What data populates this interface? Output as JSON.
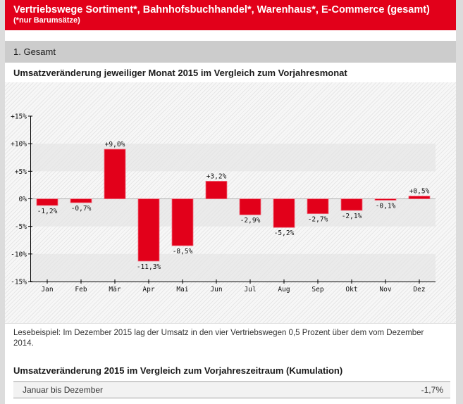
{
  "banner": {
    "title": "Vertriebswege Sortiment*, Bahnhofsbuchhandel*, Warenhaus*, E-Commerce (gesamt)",
    "subtitle": "(*nur Barumsätze)"
  },
  "section": {
    "label": "1. Gesamt"
  },
  "chart_title": "Umsatzveränderung jeweiliger Monat 2015 im Vergleich zum Vorjahresmonat",
  "colors": {
    "brand": "#e2001a",
    "bar": "#e2001a"
  },
  "chart_data": {
    "type": "bar",
    "title": "Umsatzveränderung jeweiliger Monat 2015 im Vergleich zum Vorjahresmonat",
    "xlabel": "",
    "ylabel": "",
    "categories": [
      "Jan",
      "Feb",
      "Mär",
      "Apr",
      "Mai",
      "Jun",
      "Jul",
      "Aug",
      "Sep",
      "Okt",
      "Nov",
      "Dez"
    ],
    "values": [
      -1.2,
      -0.7,
      9.0,
      -11.3,
      -8.5,
      3.2,
      -2.9,
      -5.2,
      -2.7,
      -2.1,
      -0.1,
      0.5
    ],
    "data_labels": [
      "-1,2%",
      "-0,7%",
      "+9,0%",
      "-11,3%",
      "-8,5%",
      "+3,2%",
      "-2,9%",
      "-5,2%",
      "-2,7%",
      "-2,1%",
      "-0,1%",
      "+0,5%"
    ],
    "ylim": [
      -15,
      15
    ],
    "yticks": [
      15,
      10,
      5,
      0,
      -5,
      -10,
      -15
    ],
    "ytick_labels": [
      "+15%",
      "+10%",
      "+5%",
      "0%",
      "-5%",
      "-10%",
      "-15%"
    ],
    "grid": "alternating bands",
    "legend": "none"
  },
  "note": "Lesebeispiel: Im Dezember 2015 lag der Umsatz in den vier Vertriebswegen 0,5 Prozent über dem vom Dezember 2014.",
  "cumulative": {
    "title": "Umsatzveränderung 2015 im Vergleich zum Vorjahreszeitraum (Kumulation)",
    "rows": [
      {
        "label": "Januar bis Dezember",
        "value": "-1,7%"
      }
    ]
  }
}
